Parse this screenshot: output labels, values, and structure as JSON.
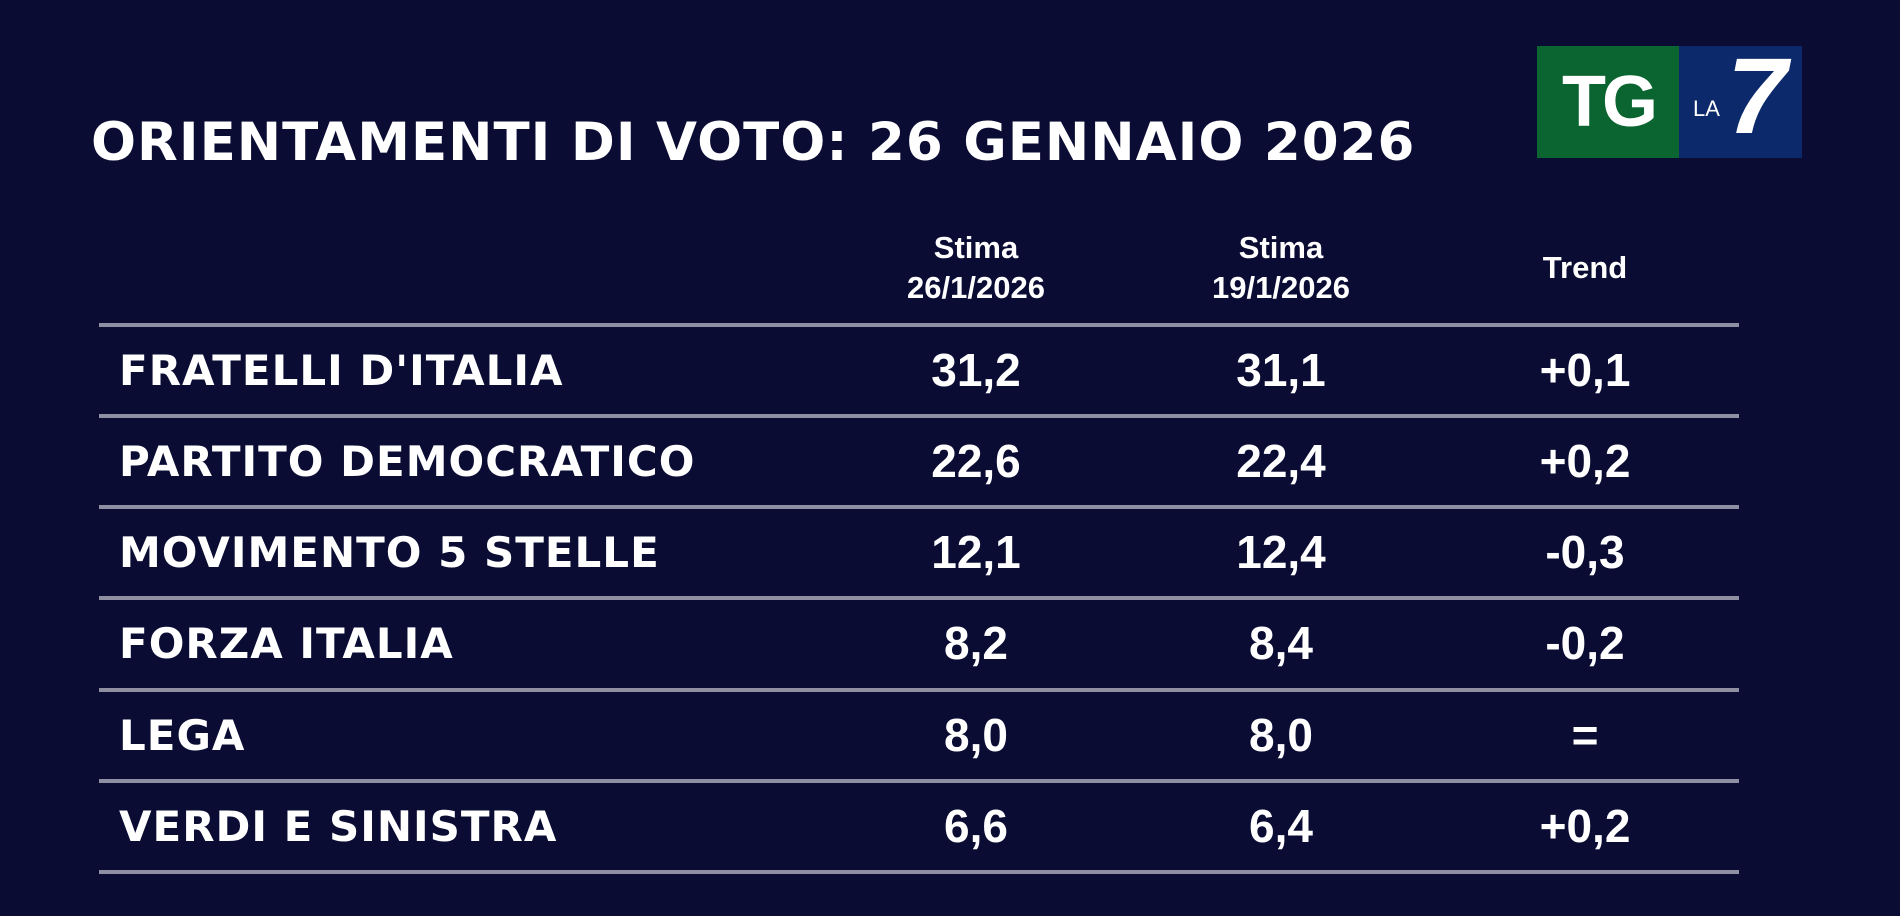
{
  "title": "ORIENTAMENTI DI VOTO: 26 GENNAIO 2026",
  "logo": {
    "tg": "TG",
    "la": "LA",
    "seven": "7",
    "colors": {
      "green": "#0b6530",
      "blue": "#0c2a6b"
    }
  },
  "columns": {
    "current": {
      "line1": "Stima",
      "line2": "26/1/2026"
    },
    "previous": {
      "line1": "Stima",
      "line2": "19/1/2026"
    },
    "trend": "Trend"
  },
  "rows": [
    {
      "party": "FRATELLI D'ITALIA",
      "current": "31,2",
      "previous": "31,1",
      "trend": "+0,1"
    },
    {
      "party": "PARTITO DEMOCRATICO",
      "current": "22,6",
      "previous": "22,4",
      "trend": "+0,2"
    },
    {
      "party": "MOVIMENTO 5 STELLE",
      "current": "12,1",
      "previous": "12,4",
      "trend": "-0,3"
    },
    {
      "party": "FORZA ITALIA",
      "current": "8,2",
      "previous": "8,4",
      "trend": "-0,2"
    },
    {
      "party": "LEGA",
      "current": "8,0",
      "previous": "8,0",
      "trend": "="
    },
    {
      "party": "VERDI E SINISTRA",
      "current": "6,6",
      "previous": "6,4",
      "trend": "+0,2"
    }
  ]
}
